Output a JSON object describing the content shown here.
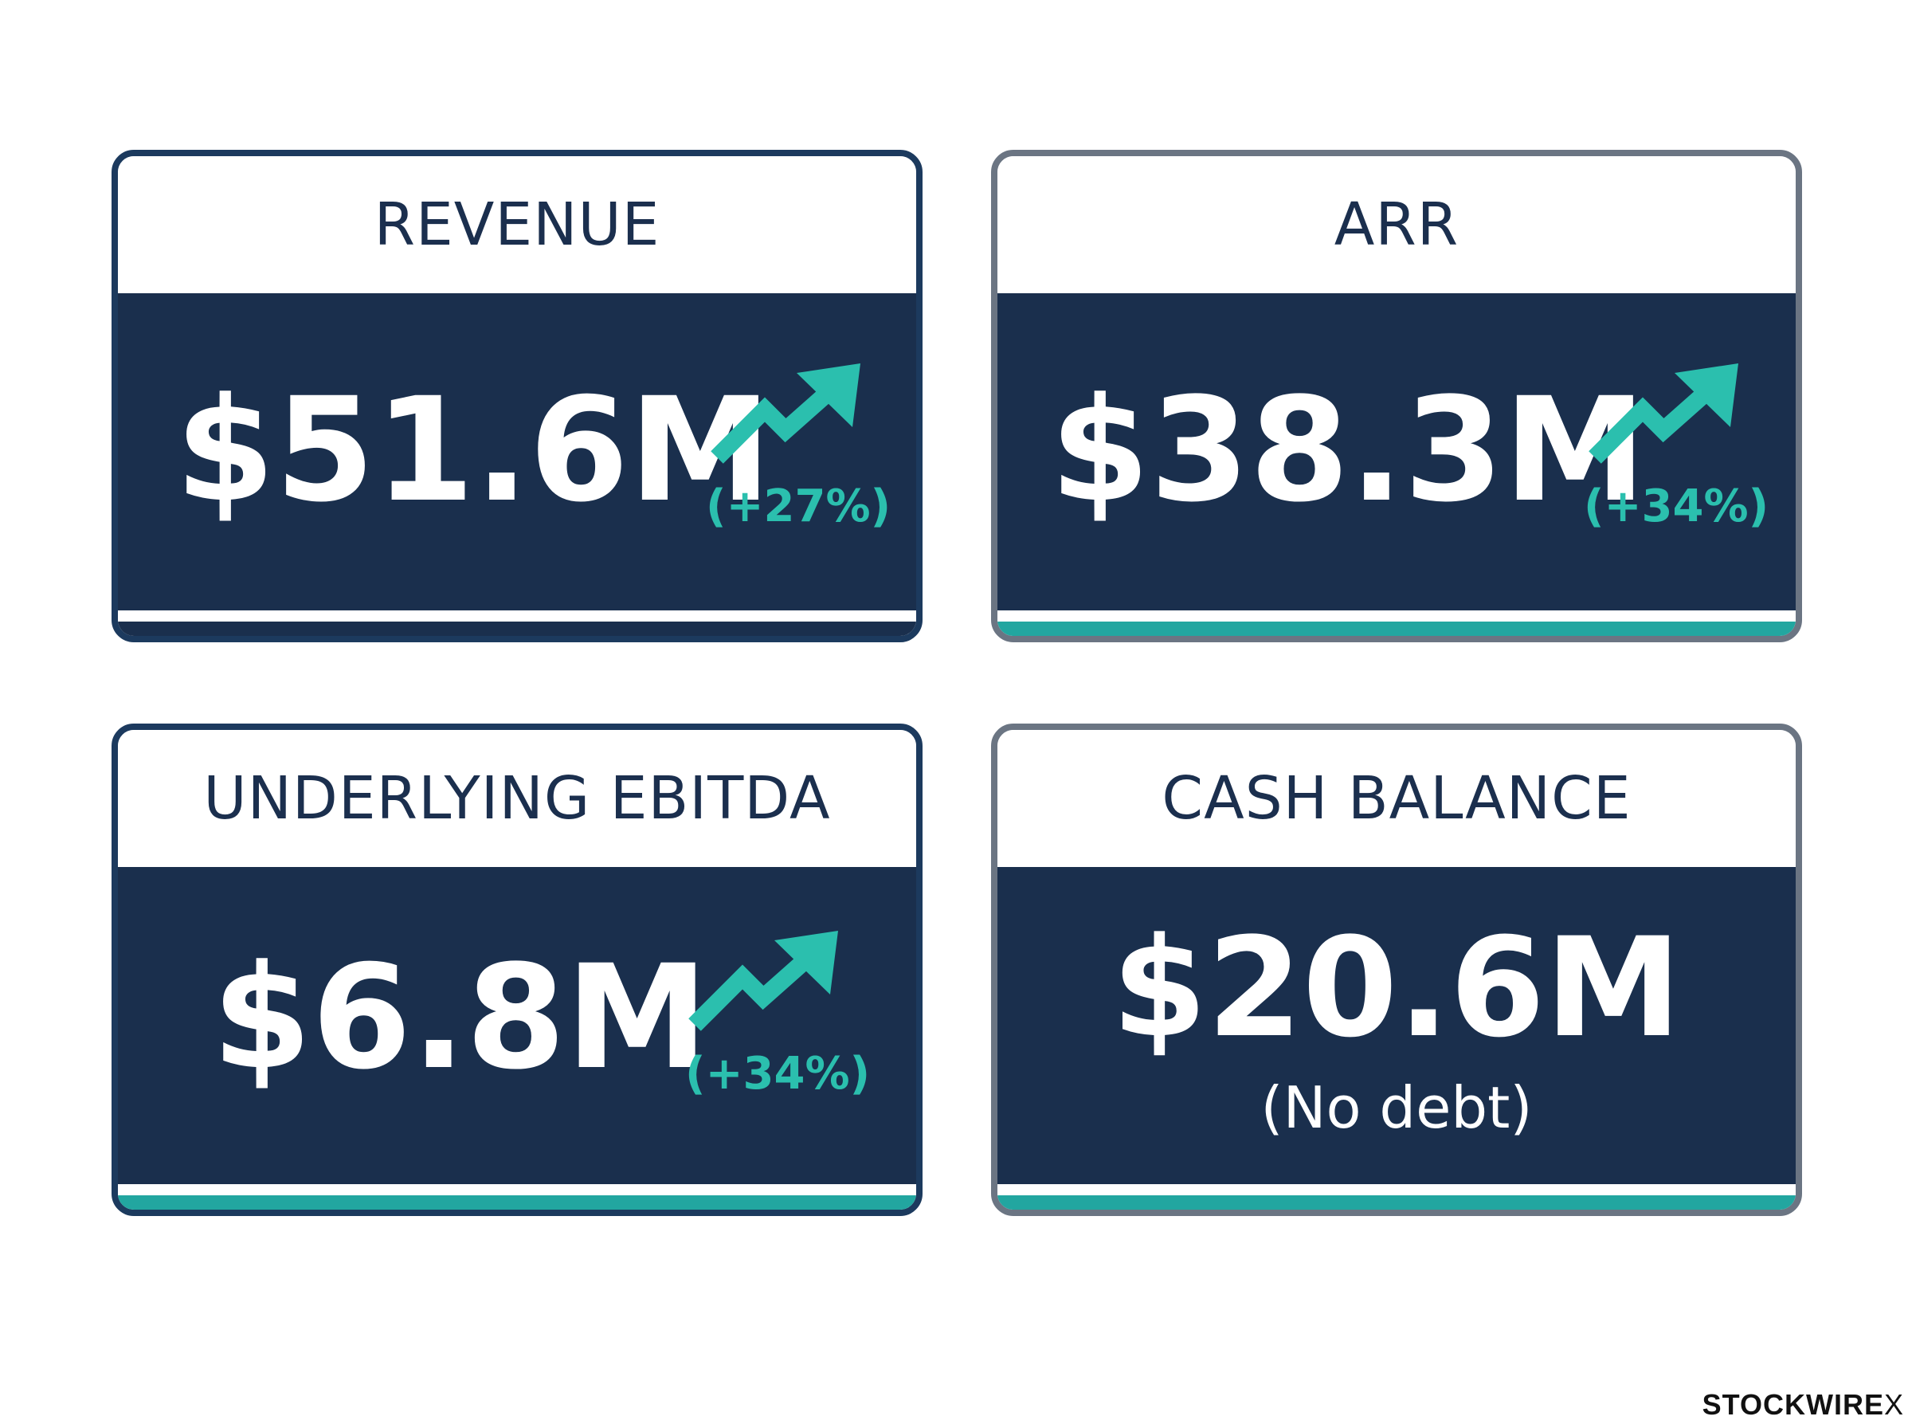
{
  "cards": [
    {
      "title": "REVENUE",
      "value": "$51.6M",
      "change": "(+27%)",
      "trend_icon": "trend-up-arrow-icon",
      "bottom_color": "#1a2f4d"
    },
    {
      "title": "ARR",
      "value": "$38.3M",
      "change": "(+34%)",
      "trend_icon": "trend-up-arrow-icon",
      "bottom_color": "#22a6a0"
    },
    {
      "title": "UNDERLYING EBITDA",
      "value": "$6.8M",
      "change": "(+34%)",
      "trend_icon": "trend-up-arrow-icon",
      "bottom_color": "#22a6a0"
    },
    {
      "title": "CASH BALANCE",
      "value": "$20.6M",
      "note": "(No debt)",
      "bottom_color": "#22a6a0"
    }
  ],
  "brand": {
    "name": "STOCKWIRE",
    "mark": "X"
  },
  "colors": {
    "navy": "#1a2f4d",
    "teal": "#2bbfae",
    "border_navy": "#1c3a5e",
    "border_grey": "#6b7583"
  }
}
